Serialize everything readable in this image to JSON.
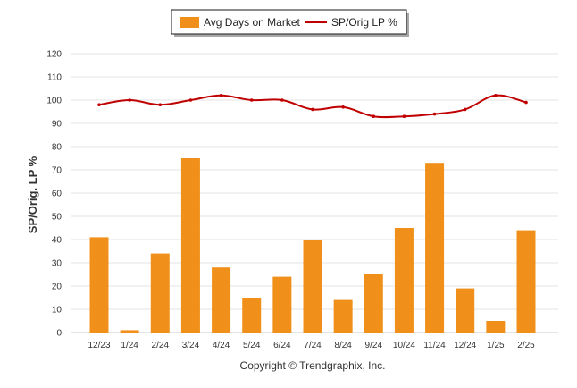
{
  "chart_data": {
    "type": "bar",
    "categories": [
      "12/23",
      "1/24",
      "2/24",
      "3/24",
      "4/24",
      "5/24",
      "6/24",
      "7/24",
      "8/24",
      "9/24",
      "10/24",
      "11/24",
      "12/24",
      "1/25",
      "2/25"
    ],
    "series": [
      {
        "name": "Avg Days on Market",
        "type": "bar",
        "color": "#F0901A",
        "values": [
          41,
          1,
          34,
          75,
          28,
          15,
          24,
          40,
          14,
          25,
          45,
          73,
          19,
          5,
          44
        ]
      },
      {
        "name": "SP/Orig LP %",
        "type": "line",
        "color": "#C00000",
        "values": [
          98,
          100,
          98,
          100,
          102,
          100,
          100,
          96,
          97,
          93,
          93,
          94,
          96,
          102,
          99
        ]
      }
    ],
    "ylabel": "SP/Orig. LP %",
    "ylim": [
      0,
      120
    ],
    "yticks": [
      "0",
      "10",
      "20",
      "30",
      "40",
      "50",
      "60",
      "70",
      "80",
      "90",
      "100",
      "110",
      "120"
    ],
    "grid": true,
    "legend_position": "top-center"
  },
  "legend": {
    "bar_label": "Avg Days on Market",
    "line_label": "SP/Orig LP %"
  },
  "footer": {
    "copyright": "Copyright © Trendgraphix, Inc."
  }
}
